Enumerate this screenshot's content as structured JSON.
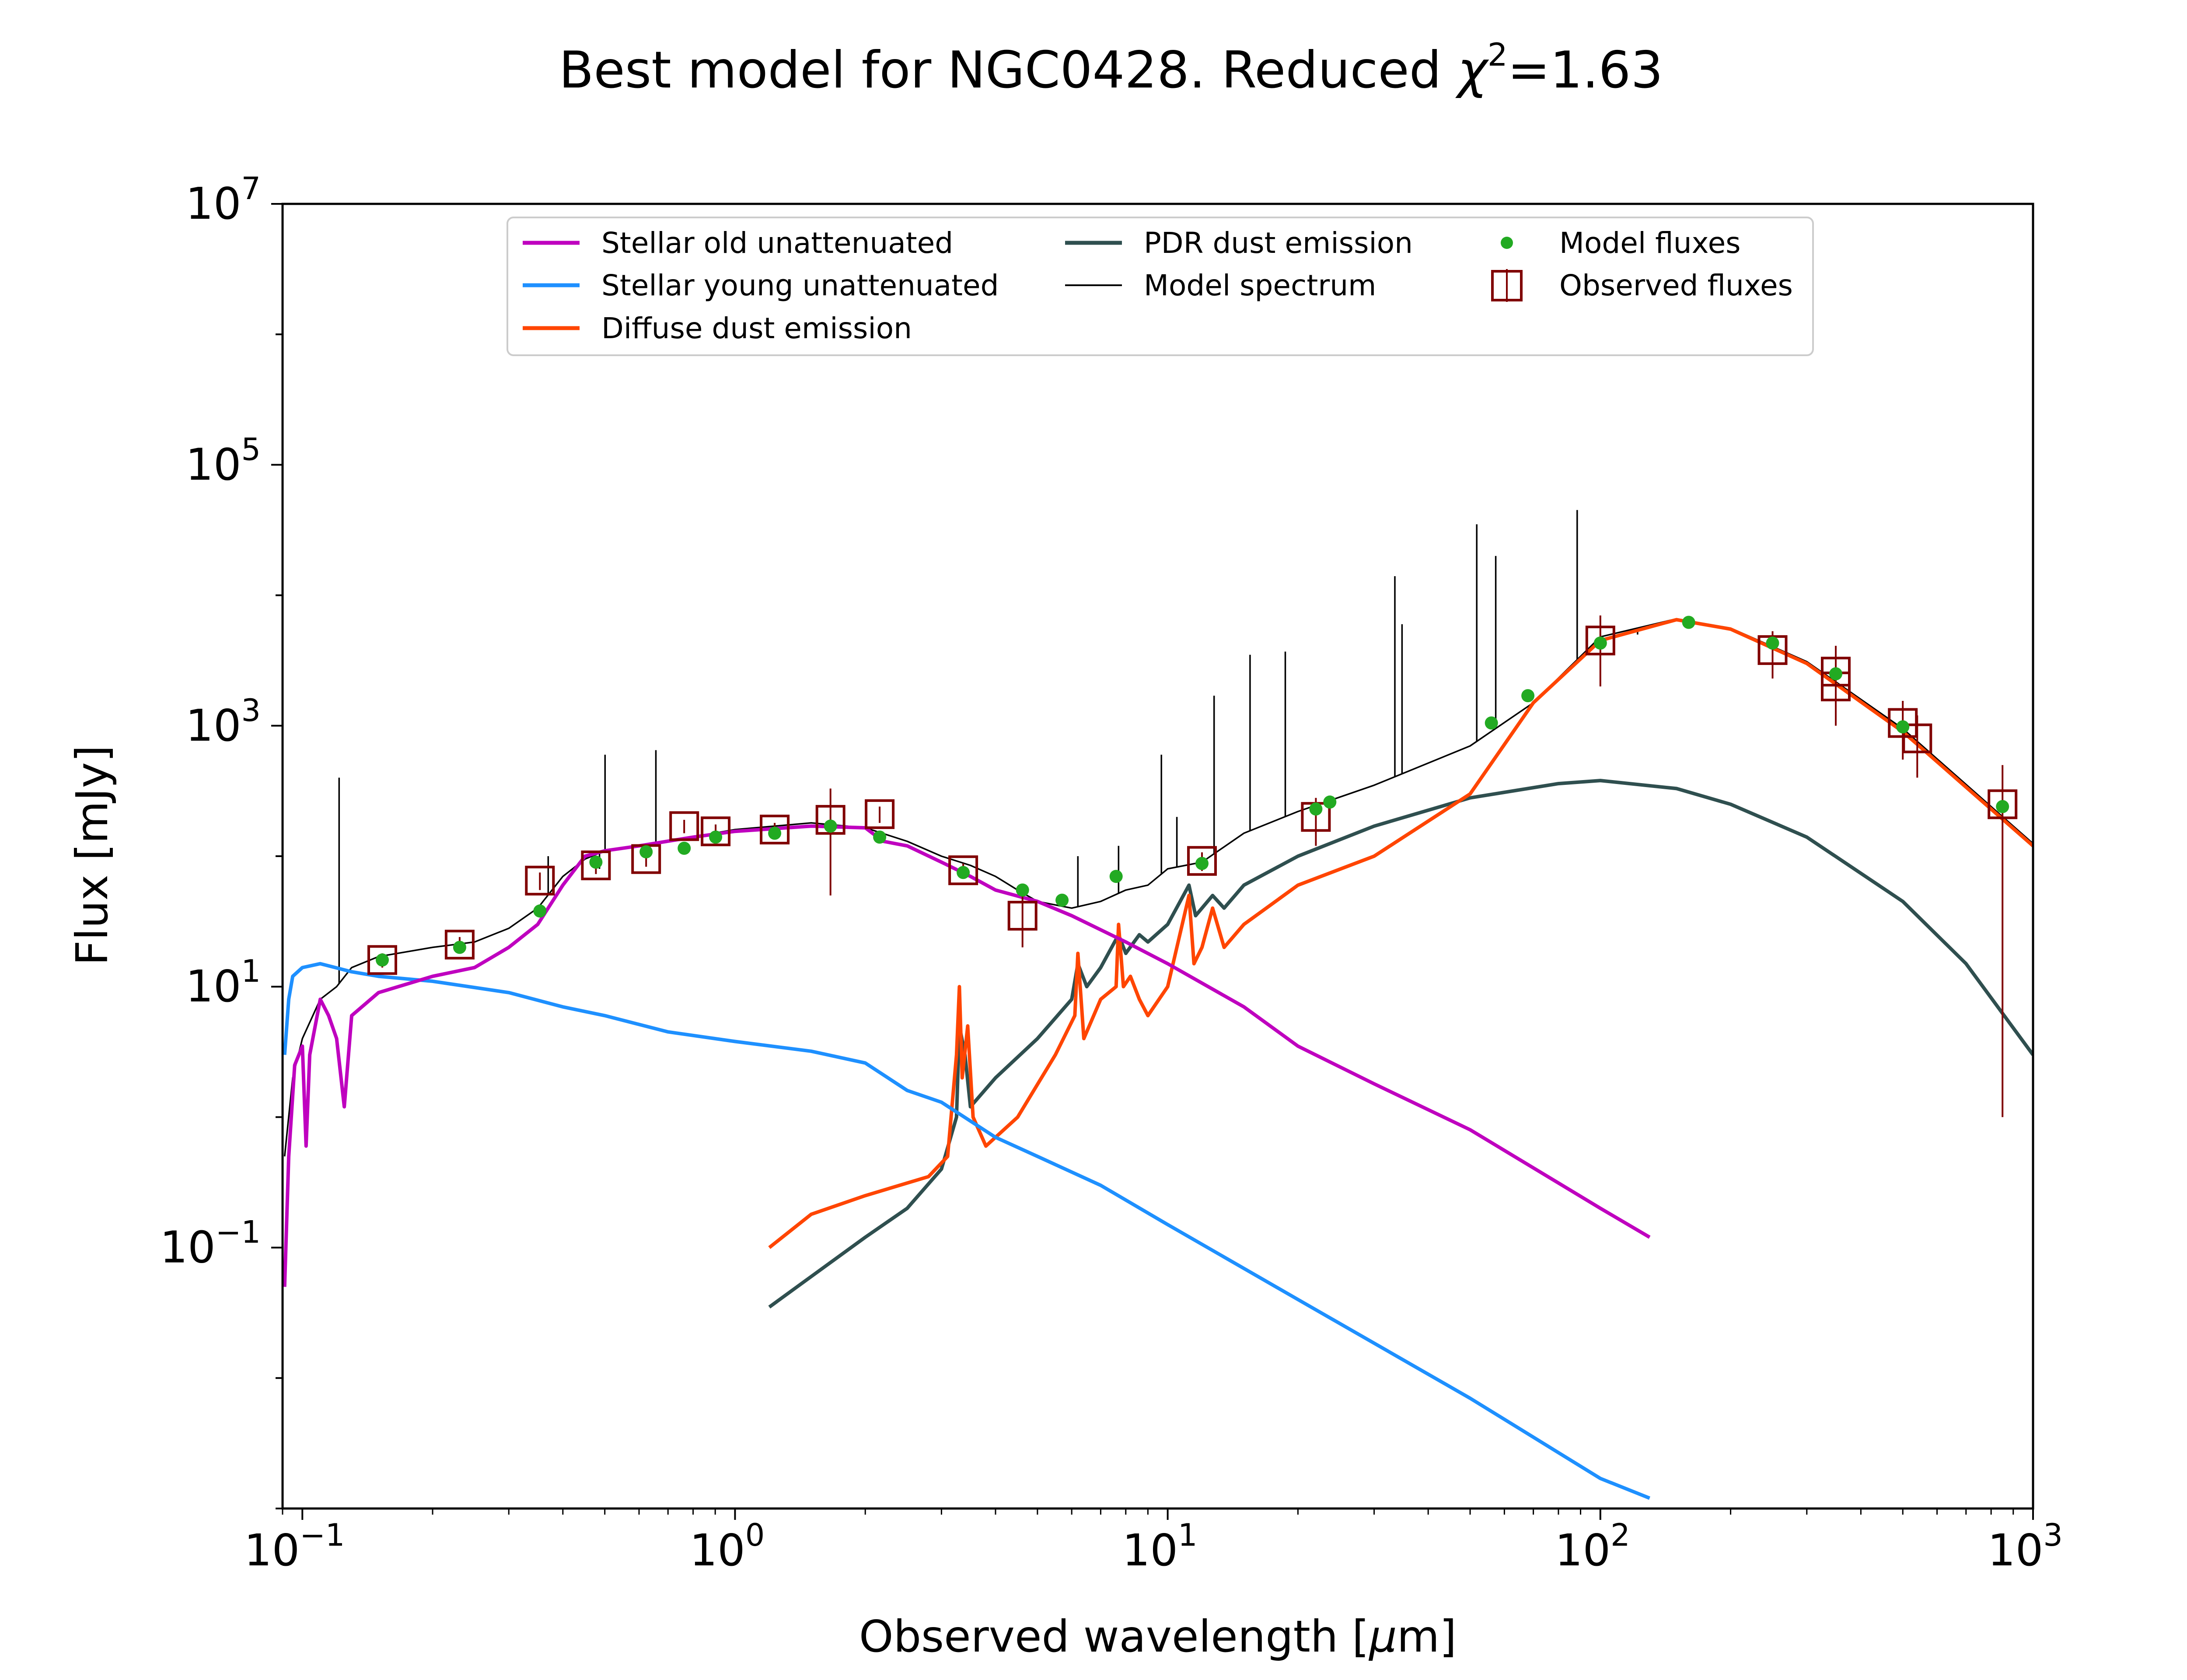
{
  "chart_data": {
    "type": "line",
    "title_prefix": "Best model for NGC0428. Reduced ",
    "title_chi": "χ",
    "title_sup": "2",
    "title_suffix": "=1.63",
    "xlabel_prefix": "Observed wavelength [",
    "xlabel_mu": "μ",
    "xlabel_suffix": "m]",
    "ylabel": "Flux [mJy]",
    "xscale": "log",
    "yscale": "log",
    "xlim": [
      0.09,
      1000
    ],
    "ylim": [
      0.001,
      10000000
    ],
    "x_ticks": [
      {
        "value": 0.1,
        "base": "10",
        "exp": "−1"
      },
      {
        "value": 1,
        "base": "10",
        "exp": "0"
      },
      {
        "value": 10,
        "base": "10",
        "exp": "1"
      },
      {
        "value": 100,
        "base": "10",
        "exp": "2"
      },
      {
        "value": 1000,
        "base": "10",
        "exp": "3"
      }
    ],
    "y_ticks": [
      {
        "value": 0.1,
        "base": "10",
        "exp": "−1"
      },
      {
        "value": 10,
        "base": "10",
        "exp": "1"
      },
      {
        "value": 1000,
        "base": "10",
        "exp": "3"
      },
      {
        "value": 100000,
        "base": "10",
        "exp": "5"
      },
      {
        "value": 10000000,
        "base": "10",
        "exp": "7"
      }
    ],
    "grid": false,
    "legend_position": "top-center",
    "colors": {
      "stellar_old": "#bf00bf",
      "stellar_young": "#1e90ff",
      "diffuse_dust": "#ff4500",
      "pdr_dust": "#2f4f4f",
      "model_spectrum": "#000000",
      "model_fluxes": "#22aa22",
      "observed_fluxes": "#800000"
    },
    "series": [
      {
        "name": "Stellar old unattenuated",
        "key": "stellar_old",
        "points": [
          [
            0.091,
            0.05
          ],
          [
            0.093,
            0.5
          ],
          [
            0.096,
            2.5
          ],
          [
            0.1,
            3.5
          ],
          [
            0.102,
            0.6
          ],
          [
            0.104,
            3
          ],
          [
            0.11,
            8
          ],
          [
            0.115,
            6
          ],
          [
            0.12,
            4
          ],
          [
            0.125,
            1.2
          ],
          [
            0.13,
            6
          ],
          [
            0.15,
            9
          ],
          [
            0.2,
            12
          ],
          [
            0.25,
            14
          ],
          [
            0.3,
            20
          ],
          [
            0.35,
            30
          ],
          [
            0.4,
            60
          ],
          [
            0.45,
            100
          ],
          [
            0.5,
            110
          ],
          [
            0.6,
            120
          ],
          [
            0.8,
            140
          ],
          [
            1,
            155
          ],
          [
            1.5,
            170
          ],
          [
            2,
            165
          ],
          [
            2.2,
            130
          ],
          [
            2.5,
            120
          ],
          [
            3,
            90
          ],
          [
            3.5,
            70
          ],
          [
            4,
            55
          ],
          [
            5,
            45
          ],
          [
            6,
            35
          ],
          [
            8,
            22
          ],
          [
            10,
            15
          ],
          [
            15,
            7
          ],
          [
            20,
            3.5
          ],
          [
            30,
            1.8
          ],
          [
            50,
            0.8
          ],
          [
            100,
            0.2
          ],
          [
            130,
            0.12
          ]
        ]
      },
      {
        "name": "Stellar young unattenuated",
        "key": "stellar_young",
        "points": [
          [
            0.091,
            3
          ],
          [
            0.093,
            8
          ],
          [
            0.095,
            12
          ],
          [
            0.1,
            14
          ],
          [
            0.11,
            15
          ],
          [
            0.13,
            13
          ],
          [
            0.15,
            12
          ],
          [
            0.2,
            11
          ],
          [
            0.3,
            9
          ],
          [
            0.4,
            7
          ],
          [
            0.5,
            6
          ],
          [
            0.7,
            4.5
          ],
          [
            1,
            3.8
          ],
          [
            1.5,
            3.2
          ],
          [
            2,
            2.6
          ],
          [
            2.5,
            1.6
          ],
          [
            3,
            1.3
          ],
          [
            4,
            0.7
          ],
          [
            5,
            0.5
          ],
          [
            7,
            0.3
          ],
          [
            10,
            0.15
          ],
          [
            20,
            0.04
          ],
          [
            50,
            0.007
          ],
          [
            100,
            0.0017
          ],
          [
            130,
            0.0012
          ]
        ]
      },
      {
        "name": "Diffuse dust emission",
        "key": "diffuse_dust",
        "points": [
          [
            1.2,
            0.1
          ],
          [
            1.5,
            0.18
          ],
          [
            2,
            0.25
          ],
          [
            2.8,
            0.35
          ],
          [
            3.1,
            0.5
          ],
          [
            3.25,
            3
          ],
          [
            3.3,
            10
          ],
          [
            3.35,
            2
          ],
          [
            3.45,
            5
          ],
          [
            3.55,
            1
          ],
          [
            3.8,
            0.6
          ],
          [
            4.5,
            1
          ],
          [
            5.5,
            3
          ],
          [
            6.1,
            6
          ],
          [
            6.2,
            18
          ],
          [
            6.4,
            4
          ],
          [
            7,
            8
          ],
          [
            7.6,
            10
          ],
          [
            7.7,
            30
          ],
          [
            7.9,
            10
          ],
          [
            8.2,
            12
          ],
          [
            8.6,
            8
          ],
          [
            9,
            6
          ],
          [
            10,
            10
          ],
          [
            11.2,
            50
          ],
          [
            11.5,
            15
          ],
          [
            12,
            20
          ],
          [
            12.7,
            40
          ],
          [
            13.5,
            20
          ],
          [
            15,
            30
          ],
          [
            20,
            60
          ],
          [
            30,
            100
          ],
          [
            50,
            300
          ],
          [
            70,
            1500
          ],
          [
            100,
            4500
          ],
          [
            150,
            6500
          ],
          [
            200,
            5500
          ],
          [
            300,
            3000
          ],
          [
            500,
            900
          ],
          [
            1000,
            120
          ]
        ]
      },
      {
        "name": "PDR dust emission",
        "key": "pdr_dust",
        "points": [
          [
            1.2,
            0.035
          ],
          [
            1.5,
            0.06
          ],
          [
            2,
            0.12
          ],
          [
            2.5,
            0.2
          ],
          [
            3,
            0.4
          ],
          [
            3.25,
            1
          ],
          [
            3.3,
            5
          ],
          [
            3.4,
            3
          ],
          [
            3.5,
            1.2
          ],
          [
            4,
            2
          ],
          [
            5,
            4
          ],
          [
            6,
            8
          ],
          [
            6.2,
            15
          ],
          [
            6.5,
            10
          ],
          [
            7,
            14
          ],
          [
            7.7,
            25
          ],
          [
            8,
            18
          ],
          [
            8.6,
            25
          ],
          [
            9,
            22
          ],
          [
            10,
            30
          ],
          [
            11.2,
            60
          ],
          [
            11.6,
            35
          ],
          [
            12.7,
            50
          ],
          [
            13.5,
            40
          ],
          [
            15,
            60
          ],
          [
            20,
            100
          ],
          [
            30,
            170
          ],
          [
            50,
            280
          ],
          [
            80,
            360
          ],
          [
            100,
            380
          ],
          [
            150,
            330
          ],
          [
            200,
            250
          ],
          [
            300,
            140
          ],
          [
            500,
            45
          ],
          [
            700,
            15
          ],
          [
            1000,
            3
          ]
        ]
      },
      {
        "name": "Model spectrum",
        "key": "model_spectrum",
        "points": [
          [
            0.091,
            0.5
          ],
          [
            0.095,
            2
          ],
          [
            0.1,
            4
          ],
          [
            0.11,
            8
          ],
          [
            0.12,
            10
          ],
          [
            0.13,
            14
          ],
          [
            0.15,
            17
          ],
          [
            0.2,
            20
          ],
          [
            0.25,
            22
          ],
          [
            0.3,
            28
          ],
          [
            0.35,
            40
          ],
          [
            0.4,
            70
          ],
          [
            0.45,
            95
          ],
          [
            0.5,
            110
          ],
          [
            0.7,
            130
          ],
          [
            1,
            160
          ],
          [
            1.5,
            180
          ],
          [
            2,
            165
          ],
          [
            2.5,
            130
          ],
          [
            3,
            100
          ],
          [
            3.5,
            85
          ],
          [
            4,
            70
          ],
          [
            4.5,
            55
          ],
          [
            5,
            45
          ],
          [
            6,
            40
          ],
          [
            7,
            45
          ],
          [
            8,
            55
          ],
          [
            9,
            60
          ],
          [
            10,
            80
          ],
          [
            12,
            90
          ],
          [
            15,
            150
          ],
          [
            20,
            220
          ],
          [
            30,
            350
          ],
          [
            50,
            700
          ],
          [
            70,
            1500
          ],
          [
            100,
            4800
          ],
          [
            150,
            6600
          ],
          [
            200,
            5600
          ],
          [
            300,
            3100
          ],
          [
            500,
            950
          ],
          [
            1000,
            125
          ]
        ],
        "lines": [
          [
            0.1216,
            400
          ],
          [
            0.37,
            100
          ],
          [
            0.4861,
            80
          ],
          [
            0.5007,
            600
          ],
          [
            0.6563,
            650
          ],
          [
            6.2,
            100
          ],
          [
            7.7,
            120
          ],
          [
            9.67,
            600
          ],
          [
            10.5,
            200
          ],
          [
            12.8,
            1700
          ],
          [
            15.5,
            3500
          ],
          [
            18.7,
            3700
          ],
          [
            33.5,
            14000
          ],
          [
            34.8,
            6000
          ],
          [
            51.8,
            35000
          ],
          [
            57.3,
            20000
          ],
          [
            88.4,
            45000
          ],
          [
            121.9,
            5000
          ],
          [
            157.7,
            6000
          ]
        ]
      }
    ],
    "model_fluxes": [
      [
        0.153,
        16
      ],
      [
        0.231,
        20
      ],
      [
        0.354,
        38
      ],
      [
        0.477,
        90
      ],
      [
        0.623,
        108
      ],
      [
        0.763,
        115
      ],
      [
        0.902,
        140
      ],
      [
        1.235,
        150
      ],
      [
        1.662,
        170
      ],
      [
        2.159,
        140
      ],
      [
        3.368,
        75
      ],
      [
        4.618,
        55
      ],
      [
        5.7,
        46
      ],
      [
        7.6,
        70
      ],
      [
        12,
        88
      ],
      [
        22,
        230
      ],
      [
        23.7,
        260
      ],
      [
        56,
        1050
      ],
      [
        68,
        1700
      ],
      [
        100,
        4300
      ],
      [
        160,
        6200
      ],
      [
        250,
        4300
      ],
      [
        350,
        2500
      ],
      [
        500,
        980
      ],
      [
        850,
        240
      ]
    ],
    "observed_fluxes": [
      {
        "x": 0.153,
        "y": 16,
        "err": 2
      },
      {
        "x": 0.231,
        "y": 21,
        "err": 3
      },
      {
        "x": 0.354,
        "y": 65,
        "err": 10
      },
      {
        "x": 0.477,
        "y": 85,
        "err": 12
      },
      {
        "x": 0.623,
        "y": 95,
        "err": 12
      },
      {
        "x": 0.763,
        "y": 170,
        "err": 20
      },
      {
        "x": 0.902,
        "y": 155,
        "err": 20
      },
      {
        "x": 1.235,
        "y": 160,
        "err": 20
      },
      {
        "x": 1.662,
        "y": 190,
        "err": 140
      },
      {
        "x": 2.159,
        "y": 210,
        "err": 30
      },
      {
        "x": 3.368,
        "y": 78,
        "err": 10
      },
      {
        "x": 4.618,
        "y": 35,
        "err": 15
      },
      {
        "x": 12,
        "y": 92,
        "err": 15
      },
      {
        "x": 22,
        "y": 200,
        "err": 80
      },
      {
        "x": 100,
        "y": 4500,
        "err": 2500
      },
      {
        "x": 250,
        "y": 3800,
        "err": 1500
      },
      {
        "x": 350,
        "y": 2600,
        "err": 1500
      },
      {
        "x": 350,
        "y": 2000,
        "err": 1000
      },
      {
        "x": 500,
        "y": 1050,
        "err": 500
      },
      {
        "x": 540,
        "y": 800,
        "err": 400
      },
      {
        "x": 850,
        "y": 250,
        "err": 249
      }
    ]
  }
}
